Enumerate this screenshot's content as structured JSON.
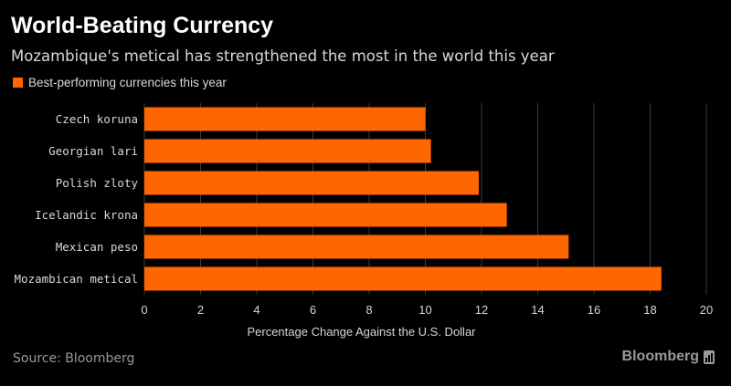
{
  "title": "World-Beating Currency",
  "subtitle": "Mozambique's metical has strengthened the most in the world this year",
  "source": "Source: Bloomberg",
  "brand": "Bloomberg",
  "colors": {
    "bar": "#ff6600",
    "grid": "#3a3a3a",
    "text": "#d8d8d8",
    "muted": "#9a9a9a"
  },
  "chart_data": {
    "type": "bar",
    "orientation": "horizontal",
    "title": "World-Beating Currency",
    "subtitle": "Mozambique's metical has strengthened the most in the world this year",
    "xlabel": "Percentage Change Against the U.S. Dollar",
    "ylabel": "",
    "xlim": [
      0,
      20
    ],
    "xticks": [
      0,
      2,
      4,
      6,
      8,
      10,
      12,
      14,
      16,
      18,
      20
    ],
    "grid": true,
    "legend_position": "top-left",
    "categories": [
      "Czech koruna",
      "Georgian lari",
      "Polish zloty",
      "Icelandic krona",
      "Mexican peso",
      "Mozambican metical"
    ],
    "series": [
      {
        "name": "Best-performing currencies this year",
        "values": [
          10.0,
          10.2,
          11.9,
          12.9,
          15.1,
          18.4
        ]
      }
    ]
  }
}
